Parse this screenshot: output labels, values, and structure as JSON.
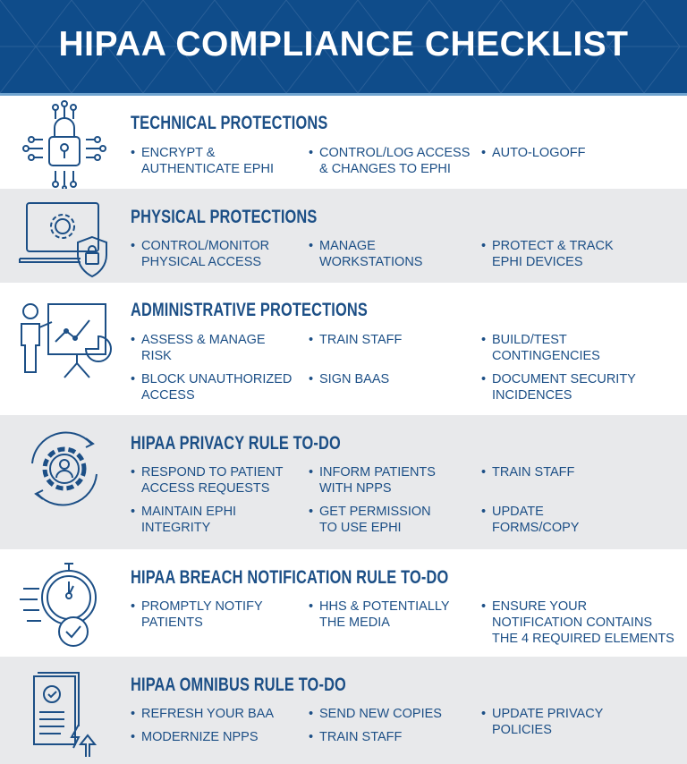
{
  "header": {
    "title": "HIPAA COMPLIANCE CHECKLIST"
  },
  "colors": {
    "brand": "#0f4c8a",
    "text": "#1c4f86",
    "band_gray": "#e8e9eb"
  },
  "sections": [
    {
      "title": "TECHNICAL PROTECTIONS",
      "icon": "circuit-lock-icon",
      "items": [
        "ENCRYPT &\nAUTHENTICATE EPHI",
        "CONTROL/LOG ACCESS\n& CHANGES TO EPHI",
        "AUTO-LOGOFF"
      ]
    },
    {
      "title": "PHYSICAL PROTECTIONS",
      "icon": "laptop-shield-lock-icon",
      "items": [
        "CONTROL/MONITOR\nPHYSICAL ACCESS",
        "MANAGE\nWORKSTATIONS",
        "PROTECT & TRACK\nEPHI DEVICES"
      ]
    },
    {
      "title": "ADMINISTRATIVE PROTECTIONS",
      "icon": "presenter-chart-icon",
      "items": [
        "ASSESS & MANAGE\nRISK",
        "TRAIN STAFF",
        "BUILD/TEST\nCONTINGENCIES",
        "BLOCK UNAUTHORIZED\nACCESS",
        "SIGN BAAS",
        "DOCUMENT SECURITY\nINCIDENCES"
      ]
    },
    {
      "title": "HIPAA PRIVACY RULE TO-DO",
      "icon": "gear-user-cycle-icon",
      "items": [
        "RESPOND TO PATIENT\nACCESS REQUESTS",
        "INFORM PATIENTS\nWITH NPPS",
        "TRAIN STAFF",
        "MAINTAIN EPHI\nINTEGRITY",
        "GET PERMISSION\nTO USE EPHI",
        "UPDATE\nFORMS/COPY"
      ]
    },
    {
      "title": "HIPAA BREACH NOTIFICATION RULE TO-DO",
      "icon": "stopwatch-check-icon",
      "items": [
        "PROMPTLY NOTIFY\nPATIENTS",
        "HHS & POTENTIALLY\nTHE MEDIA",
        "ENSURE YOUR\nNOTIFICATION CONTAINS\nTHE 4 REQUIRED ELEMENTS"
      ]
    },
    {
      "title": "HIPAA OMNIBUS RULE TO-DO",
      "icon": "document-refresh-icon",
      "items": [
        "REFRESH YOUR BAA",
        "SEND NEW COPIES",
        "UPDATE PRIVACY\nPOLICIES",
        "MODERNIZE NPPS",
        "TRAIN STAFF"
      ]
    }
  ]
}
